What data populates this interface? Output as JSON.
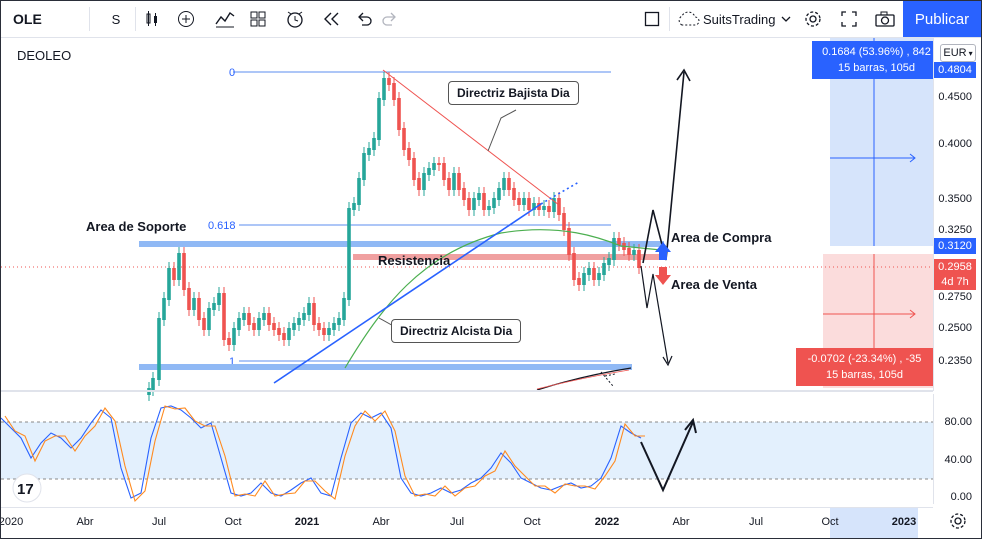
{
  "toolbar": {
    "symbol": "OLE",
    "interval": "S",
    "brand": "SuitsTrading",
    "publish_label": "Publicar"
  },
  "pane": {
    "name": "DEOLEO",
    "currency": "EUR"
  },
  "price_axis": {
    "ticks": [
      "0.4500",
      "0.4000",
      "0.3500",
      "0.3250",
      "0.2750",
      "0.2500",
      "0.2350"
    ],
    "top_tag": "0.4804",
    "upper_tag": "0.3120",
    "current_price": "0.2958",
    "countdown": "4d 7h"
  },
  "osc_axis": {
    "ticks": [
      "80.00",
      "40.00",
      "0.00"
    ]
  },
  "time_axis": {
    "labels": [
      "2020",
      "Abr",
      "Jul",
      "Oct",
      "2021",
      "Abr",
      "Jul",
      "Oct",
      "2022",
      "Abr",
      "Jul",
      "Oct",
      "2023"
    ]
  },
  "measure_up": {
    "line1": "0.1684 (53.96%) , 842",
    "line2": "15 barras, 105d"
  },
  "measure_down": {
    "line1": "-0.0702 (-23.34%) , -35",
    "line2": "15 barras, 105d"
  },
  "annotations": {
    "bearish": "Directriz Bajista Dia",
    "bullish": "Directriz Alcista Dia",
    "support": "Area de Soporte",
    "resistance": "Resistencia",
    "buy_area": "Area de Compra",
    "sell_area": "Area de Venta",
    "fib_0": "0",
    "fib_618": "0.618",
    "fib_1": "1"
  },
  "colors": {
    "accent": "#2962ff",
    "up": "#26a69a",
    "down": "#ef5350",
    "support_band": "#90b9f5",
    "resistance_band": "#f0a0a0",
    "stoch_k": "#2962ff",
    "stoch_d": "#ff8a1f"
  }
}
